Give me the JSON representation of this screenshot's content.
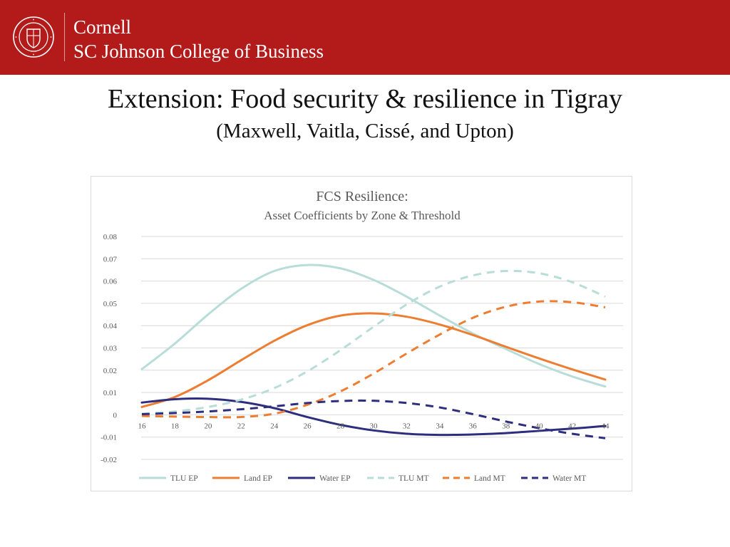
{
  "header": {
    "brand_line1": "Cornell",
    "brand_line2": "SC Johnson College of Business",
    "seal_icon": "cornell-seal-icon",
    "banner_color": "#b31b1b"
  },
  "slide": {
    "title": "Extension: Food security & resilience in Tigray",
    "subtitle": "(Maxwell, Vaitla, Cissé, and Upton)"
  },
  "chart_data": {
    "type": "line",
    "title": "FCS Resilience:",
    "subtitle": "Asset Coefficients by Zone & Threshold",
    "xlabel": "",
    "ylabel": "",
    "x": [
      16,
      18,
      20,
      22,
      24,
      26,
      28,
      30,
      32,
      34,
      36,
      38,
      40,
      42,
      44
    ],
    "x_tick_labels": [
      "16",
      "18",
      "20",
      "22",
      "24",
      "26",
      "28",
      "30",
      "32",
      "34",
      "36",
      "38",
      "40",
      "42",
      "44"
    ],
    "ylim": [
      -0.02,
      0.08
    ],
    "y_ticks": [
      -0.02,
      -0.01,
      0,
      0.01,
      0.02,
      0.03,
      0.04,
      0.05,
      0.06,
      0.07,
      0.08
    ],
    "y_tick_labels": [
      "-0.02",
      "-0.01",
      "0",
      "0.01",
      "0.02",
      "0.03",
      "0.04",
      "0.05",
      "0.06",
      "0.07",
      "0.08"
    ],
    "grid": true,
    "legend_position": "bottom",
    "series": [
      {
        "name": "TLU EP",
        "color": "#b8ddd8",
        "dash": "solid",
        "values": [
          0.0205,
          0.032,
          0.045,
          0.0565,
          0.0645,
          0.0672,
          0.0657,
          0.0605,
          0.053,
          0.0445,
          0.0365,
          0.0295,
          0.0228,
          0.0172,
          0.0127
        ]
      },
      {
        "name": "Land EP",
        "color": "#ed7d31",
        "dash": "solid",
        "values": [
          0.0035,
          0.008,
          0.0155,
          0.0245,
          0.0332,
          0.0402,
          0.0445,
          0.0455,
          0.044,
          0.0405,
          0.0358,
          0.0305,
          0.0253,
          0.0204,
          0.0158
        ]
      },
      {
        "name": "Water EP",
        "color": "#2e2e7e",
        "dash": "solid",
        "values": [
          0.0055,
          0.007,
          0.0072,
          0.0058,
          0.003,
          -0.001,
          -0.0045,
          -0.007,
          -0.0085,
          -0.009,
          -0.0088,
          -0.0082,
          -0.0072,
          -0.0062,
          -0.005
        ]
      },
      {
        "name": "TLU MT",
        "color": "#b8ddd8",
        "dash": "dashed",
        "values": [
          0.0005,
          0.0015,
          0.0035,
          0.0068,
          0.012,
          0.0195,
          0.029,
          0.0395,
          0.0495,
          0.0575,
          0.0625,
          0.0645,
          0.0635,
          0.0595,
          0.053
        ]
      },
      {
        "name": "Land MT",
        "color": "#ed7d31",
        "dash": "dashed",
        "values": [
          -0.0005,
          -0.0008,
          -0.001,
          -0.001,
          0.0005,
          0.0045,
          0.0105,
          0.0185,
          0.0275,
          0.036,
          0.0435,
          0.0485,
          0.0508,
          0.0505,
          0.0482
        ]
      },
      {
        "name": "Water MT",
        "color": "#2e2e7e",
        "dash": "dashed",
        "values": [
          0.0003,
          0.0008,
          0.0015,
          0.0025,
          0.0038,
          0.0053,
          0.0062,
          0.0063,
          0.0053,
          0.0033,
          0.0003,
          -0.003,
          -0.006,
          -0.0085,
          -0.0105
        ]
      }
    ]
  }
}
